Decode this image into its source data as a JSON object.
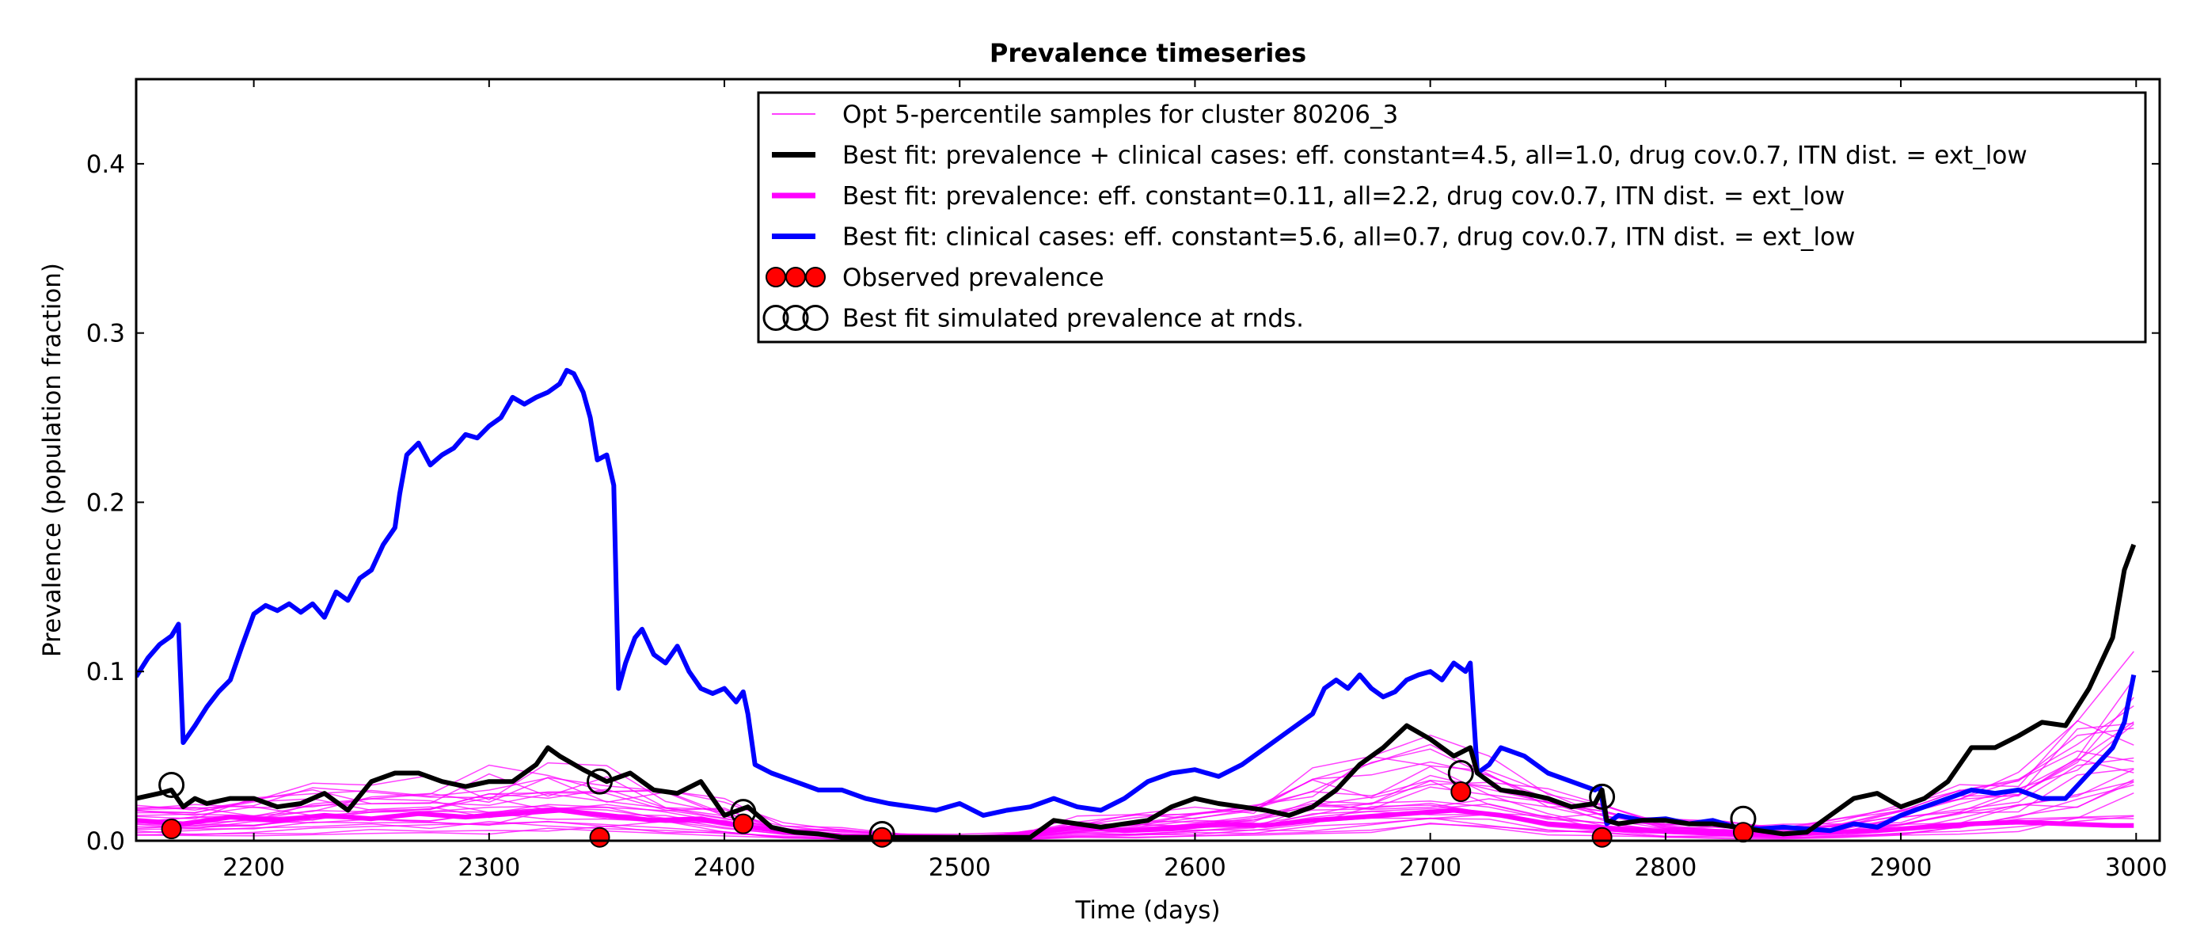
{
  "chart_data": {
    "type": "line",
    "title": "Prevalence timeseries",
    "xlabel": "Time (days)",
    "ylabel": "Prevalence (population fraction)",
    "xlim": [
      2150,
      3010
    ],
    "ylim": [
      0.0,
      0.45
    ],
    "x_ticks": [
      "2200",
      "2300",
      "2400",
      "2500",
      "2600",
      "2700",
      "2800",
      "2900",
      "3000"
    ],
    "y_ticks": [
      "0.0",
      "0.1",
      "0.2",
      "0.3",
      "0.4"
    ],
    "grid": false,
    "legend_position": "top-right",
    "legend": [
      {
        "label": "Opt 5-percentile samples for cluster 80206_3",
        "kind": "thin-line",
        "color": "#ff00ff"
      },
      {
        "label": "Best fit: prevalence + clinical cases: eff. constant=4.5, all=1.0, drug cov.0.7, ITN dist. = ext_low",
        "kind": "line",
        "color": "#000000"
      },
      {
        "label": "Best fit: prevalence: eff. constant=0.11, all=2.2, drug cov.0.7, ITN dist. = ext_low",
        "kind": "line",
        "color": "#ff00ff"
      },
      {
        "label": "Best fit: clinical cases: eff. constant=5.6, all=0.7, drug cov.0.7, ITN dist. = ext_low",
        "kind": "line",
        "color": "#0000ff"
      },
      {
        "label": "Observed prevalence",
        "kind": "red-dots",
        "color": "#ff0000"
      },
      {
        "label": "Best fit simulated prevalence at rnds.",
        "kind": "open-circles",
        "color": "#000000"
      }
    ],
    "series": [
      {
        "color": "#0000ff",
        "x": [
          2150,
          2155,
          2160,
          2165,
          2168,
          2170,
          2175,
          2180,
          2185,
          2190,
          2195,
          2200,
          2205,
          2210,
          2215,
          2220,
          2225,
          2230,
          2235,
          2240,
          2245,
          2250,
          2255,
          2260,
          2262,
          2265,
          2270,
          2275,
          2280,
          2285,
          2290,
          2295,
          2300,
          2305,
          2310,
          2315,
          2320,
          2325,
          2330,
          2333,
          2336,
          2340,
          2343,
          2346,
          2350,
          2353,
          2355,
          2358,
          2362,
          2365,
          2370,
          2375,
          2380,
          2385,
          2390,
          2395,
          2400,
          2405,
          2408,
          2410,
          2413,
          2420,
          2430,
          2440,
          2450,
          2460,
          2470,
          2480,
          2490,
          2500,
          2510,
          2520,
          2530,
          2540,
          2550,
          2560,
          2570,
          2580,
          2590,
          2600,
          2610,
          2620,
          2630,
          2640,
          2650,
          2655,
          2660,
          2665,
          2670,
          2675,
          2680,
          2685,
          2690,
          2695,
          2700,
          2705,
          2710,
          2715,
          2717,
          2720,
          2725,
          2730,
          2740,
          2750,
          2760,
          2770,
          2772,
          2775,
          2780,
          2790,
          2800,
          2810,
          2820,
          2830,
          2840,
          2850,
          2860,
          2870,
          2880,
          2890,
          2900,
          2910,
          2920,
          2930,
          2940,
          2950,
          2960,
          2970,
          2980,
          2990,
          2995,
          2999
        ],
        "y": [
          0.097,
          0.108,
          0.116,
          0.121,
          0.128,
          0.058,
          0.068,
          0.079,
          0.088,
          0.095,
          0.115,
          0.134,
          0.139,
          0.136,
          0.14,
          0.135,
          0.14,
          0.132,
          0.147,
          0.142,
          0.155,
          0.16,
          0.175,
          0.185,
          0.205,
          0.228,
          0.235,
          0.222,
          0.228,
          0.232,
          0.24,
          0.238,
          0.245,
          0.25,
          0.262,
          0.258,
          0.262,
          0.265,
          0.27,
          0.278,
          0.276,
          0.265,
          0.25,
          0.225,
          0.228,
          0.21,
          0.09,
          0.105,
          0.12,
          0.125,
          0.11,
          0.105,
          0.115,
          0.1,
          0.09,
          0.087,
          0.09,
          0.082,
          0.088,
          0.075,
          0.045,
          0.04,
          0.035,
          0.03,
          0.03,
          0.025,
          0.022,
          0.02,
          0.018,
          0.022,
          0.015,
          0.018,
          0.02,
          0.025,
          0.02,
          0.018,
          0.025,
          0.035,
          0.04,
          0.042,
          0.038,
          0.045,
          0.055,
          0.065,
          0.075,
          0.09,
          0.095,
          0.09,
          0.098,
          0.09,
          0.085,
          0.088,
          0.095,
          0.098,
          0.1,
          0.095,
          0.105,
          0.1,
          0.105,
          0.04,
          0.045,
          0.055,
          0.05,
          0.04,
          0.035,
          0.03,
          0.032,
          0.01,
          0.015,
          0.012,
          0.013,
          0.01,
          0.012,
          0.008,
          0.007,
          0.008,
          0.007,
          0.006,
          0.01,
          0.008,
          0.015,
          0.02,
          0.025,
          0.03,
          0.028,
          0.03,
          0.025,
          0.025,
          0.04,
          0.055,
          0.07,
          0.098
        ]
      },
      {
        "color": "#000000",
        "x": [
          2150,
          2160,
          2165,
          2170,
          2175,
          2180,
          2190,
          2200,
          2210,
          2220,
          2230,
          2240,
          2250,
          2260,
          2270,
          2280,
          2290,
          2300,
          2310,
          2320,
          2325,
          2330,
          2340,
          2350,
          2360,
          2370,
          2380,
          2390,
          2400,
          2410,
          2420,
          2430,
          2440,
          2450,
          2460,
          2470,
          2480,
          2490,
          2500,
          2510,
          2520,
          2530,
          2540,
          2550,
          2560,
          2570,
          2580,
          2590,
          2600,
          2610,
          2620,
          2630,
          2640,
          2650,
          2660,
          2670,
          2680,
          2690,
          2700,
          2710,
          2717,
          2720,
          2730,
          2740,
          2750,
          2760,
          2770,
          2773,
          2775,
          2780,
          2790,
          2800,
          2810,
          2820,
          2830,
          2840,
          2850,
          2860,
          2870,
          2880,
          2890,
          2900,
          2910,
          2920,
          2930,
          2940,
          2950,
          2960,
          2970,
          2980,
          2990,
          2995,
          2999
        ],
        "y": [
          0.025,
          0.028,
          0.03,
          0.02,
          0.025,
          0.022,
          0.025,
          0.025,
          0.02,
          0.022,
          0.028,
          0.018,
          0.035,
          0.04,
          0.04,
          0.035,
          0.032,
          0.035,
          0.035,
          0.045,
          0.055,
          0.05,
          0.042,
          0.035,
          0.04,
          0.03,
          0.028,
          0.035,
          0.015,
          0.02,
          0.008,
          0.005,
          0.004,
          0.002,
          0.002,
          0.002,
          0.002,
          0.002,
          0.002,
          0.002,
          0.002,
          0.002,
          0.012,
          0.01,
          0.008,
          0.01,
          0.012,
          0.02,
          0.025,
          0.022,
          0.02,
          0.018,
          0.015,
          0.02,
          0.03,
          0.045,
          0.055,
          0.068,
          0.06,
          0.05,
          0.055,
          0.04,
          0.03,
          0.028,
          0.025,
          0.02,
          0.022,
          0.03,
          0.012,
          0.01,
          0.012,
          0.012,
          0.01,
          0.01,
          0.008,
          0.006,
          0.004,
          0.005,
          0.015,
          0.025,
          0.028,
          0.02,
          0.025,
          0.035,
          0.055,
          0.055,
          0.062,
          0.07,
          0.068,
          0.09,
          0.12,
          0.16,
          0.175
        ]
      },
      {
        "color": "#ff00ff",
        "x": [
          2150,
          2170,
          2190,
          2210,
          2230,
          2250,
          2270,
          2290,
          2310,
          2330,
          2350,
          2370,
          2390,
          2410,
          2430,
          2450,
          2470,
          2490,
          2510,
          2530,
          2550,
          2570,
          2590,
          2610,
          2630,
          2650,
          2670,
          2690,
          2710,
          2730,
          2750,
          2770,
          2790,
          2810,
          2830,
          2850,
          2870,
          2890,
          2910,
          2930,
          2950,
          2970,
          2990,
          2999
        ],
        "y": [
          0.012,
          0.01,
          0.014,
          0.012,
          0.015,
          0.013,
          0.016,
          0.014,
          0.016,
          0.018,
          0.015,
          0.012,
          0.013,
          0.008,
          0.005,
          0.003,
          0.002,
          0.002,
          0.001,
          0.005,
          0.008,
          0.006,
          0.007,
          0.01,
          0.009,
          0.012,
          0.014,
          0.016,
          0.018,
          0.015,
          0.01,
          0.008,
          0.006,
          0.005,
          0.004,
          0.004,
          0.005,
          0.006,
          0.008,
          0.01,
          0.011,
          0.01,
          0.009,
          0.009
        ]
      }
    ],
    "samples": {
      "color": "#ff00ff",
      "x": [
        2150,
        2175,
        2200,
        2225,
        2250,
        2275,
        2300,
        2325,
        2350,
        2375,
        2400,
        2425,
        2450,
        2475,
        2500,
        2525,
        2550,
        2575,
        2600,
        2625,
        2650,
        2675,
        2700,
        2725,
        2750,
        2775,
        2800,
        2825,
        2850,
        2875,
        2900,
        2925,
        2950,
        2975,
        2999
      ],
      "upper": [
        0.022,
        0.02,
        0.025,
        0.028,
        0.03,
        0.032,
        0.035,
        0.04,
        0.036,
        0.03,
        0.022,
        0.01,
        0.006,
        0.004,
        0.003,
        0.004,
        0.012,
        0.014,
        0.018,
        0.022,
        0.035,
        0.045,
        0.055,
        0.04,
        0.03,
        0.02,
        0.012,
        0.01,
        0.008,
        0.012,
        0.02,
        0.03,
        0.045,
        0.07,
        0.09
      ]
    },
    "observed_points": {
      "x": [
        2165,
        2347,
        2408,
        2467,
        2713,
        2773,
        2833
      ],
      "y": [
        0.007,
        0.002,
        0.01,
        0.002,
        0.029,
        0.002,
        0.005
      ]
    },
    "simulated_points": {
      "x": [
        2165,
        2347,
        2408,
        2467,
        2713,
        2773,
        2833
      ],
      "y": [
        0.033,
        0.035,
        0.017,
        0.004,
        0.04,
        0.026,
        0.013
      ]
    }
  }
}
